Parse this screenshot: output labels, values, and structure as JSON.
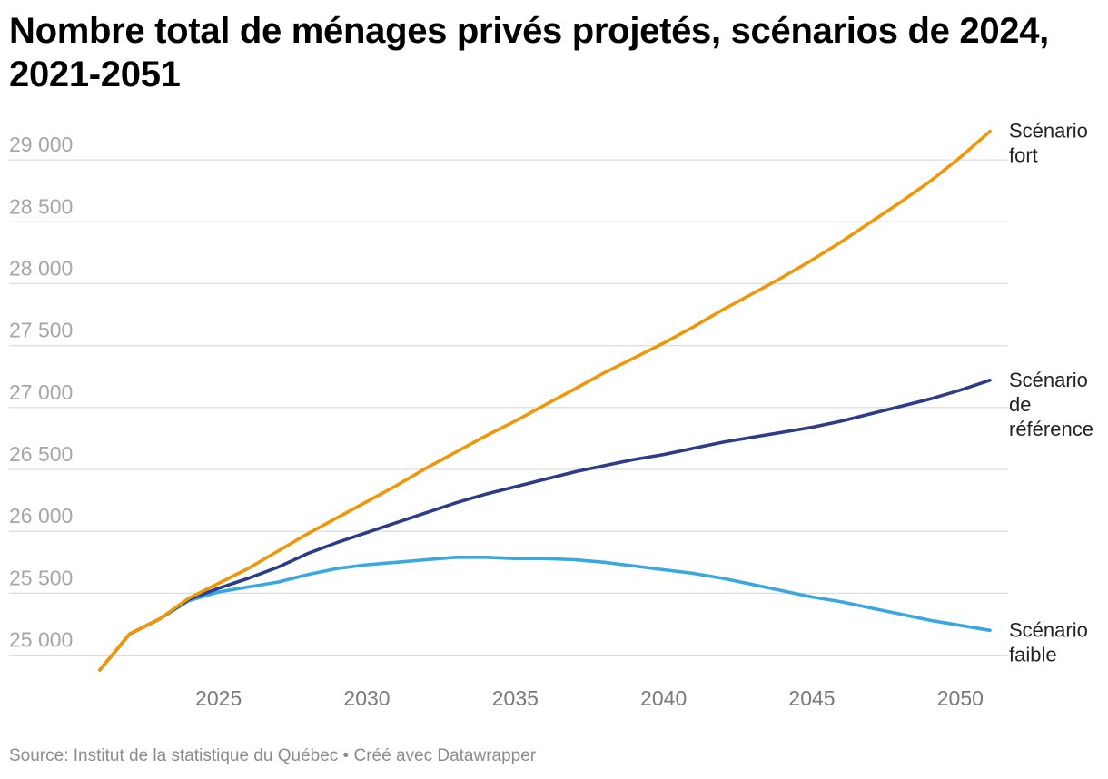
{
  "chart_data": {
    "type": "line",
    "title": "Nombre total de ménages privés projetés, scénarios de 2024, 2021-2051",
    "source": "Source: Institut de la statistique du Québec • Créé avec Datawrapper",
    "x": [
      2021,
      2022,
      2023,
      2024,
      2025,
      2026,
      2027,
      2028,
      2029,
      2030,
      2031,
      2032,
      2033,
      2034,
      2035,
      2036,
      2037,
      2038,
      2039,
      2040,
      2041,
      2042,
      2043,
      2044,
      2045,
      2046,
      2047,
      2048,
      2049,
      2050,
      2051
    ],
    "xticks": [
      "2025",
      "2030",
      "2035",
      "2040",
      "2045",
      "2050"
    ],
    "yticks": [
      "25 000",
      "25 500",
      "26 000",
      "26 500",
      "27 000",
      "27 500",
      "28 000",
      "28 500",
      "29 000"
    ],
    "ylim": [
      24850,
      29250
    ],
    "grid": true,
    "series": [
      {
        "name": "Scénario fort",
        "label_lines": [
          "Scénario",
          "fort"
        ],
        "color": "#ef9708",
        "values": [
          24880,
          25170,
          25290,
          25460,
          25580,
          25700,
          25840,
          25980,
          26110,
          26240,
          26370,
          26510,
          26640,
          26770,
          26890,
          27020,
          27150,
          27280,
          27400,
          27520,
          27650,
          27790,
          27920,
          28050,
          28190,
          28340,
          28500,
          28660,
          28830,
          29020,
          29230
        ]
      },
      {
        "name": "Scénario de référence",
        "label_lines": [
          "Scénario",
          "de",
          "référence"
        ],
        "color": "#2c3c87",
        "values": [
          24880,
          25170,
          25290,
          25450,
          25540,
          25620,
          25710,
          25820,
          25910,
          25990,
          26070,
          26150,
          26230,
          26300,
          26360,
          26420,
          26480,
          26530,
          26580,
          26620,
          26670,
          26720,
          26760,
          26800,
          26840,
          26890,
          26950,
          27010,
          27070,
          27140,
          27220
        ]
      },
      {
        "name": "Scénario faible",
        "label_lines": [
          "Scénario",
          "faible"
        ],
        "color": "#39a8e0",
        "values": [
          24880,
          25170,
          25290,
          25440,
          25510,
          25550,
          25590,
          25650,
          25700,
          25730,
          25750,
          25770,
          25790,
          25790,
          25780,
          25780,
          25770,
          25750,
          25720,
          25690,
          25660,
          25620,
          25570,
          25520,
          25470,
          25430,
          25380,
          25330,
          25280,
          25240,
          25200
        ]
      }
    ]
  }
}
